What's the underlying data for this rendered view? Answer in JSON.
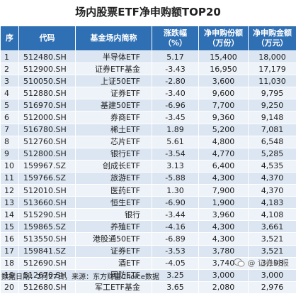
{
  "title": "场内股票ETF净申购额TOP20",
  "headers": {
    "no": "序",
    "code": "代码",
    "name": "基金场内简称",
    "chg_line1": "涨跌幅",
    "chg_line2": "（%）",
    "share_line1": "净申购份额",
    "share_line2": "（万份）",
    "amt_line1": "净申购金额",
    "amt_line2": "（万元）"
  },
  "rows": [
    {
      "no": "1",
      "code": "512480.SH",
      "name": "半导体ETF",
      "chg": "5.17",
      "share": "15,400",
      "amt": "18,000"
    },
    {
      "no": "2",
      "code": "512900.SH",
      "name": "证券ETF基金",
      "chg": "-3.43",
      "share": "16,950",
      "amt": "17,179"
    },
    {
      "no": "3",
      "code": "510050.SH",
      "name": "上证50ETF",
      "chg": "-2.80",
      "share": "3,600",
      "amt": "11,030"
    },
    {
      "no": "4",
      "code": "512880.SH",
      "name": "证券ETF",
      "chg": "-3.40",
      "share": "9,600",
      "amt": "9,795"
    },
    {
      "no": "5",
      "code": "516970.SH",
      "name": "基建50ETF",
      "chg": "-6.96",
      "share": "7,700",
      "amt": "9,250"
    },
    {
      "no": "6",
      "code": "512000.SH",
      "name": "券商ETF",
      "chg": "-3.45",
      "share": "9,360",
      "amt": "9,148"
    },
    {
      "no": "7",
      "code": "516780.SH",
      "name": "稀土ETF",
      "chg": "1.89",
      "share": "5,200",
      "amt": "7,081"
    },
    {
      "no": "8",
      "code": "512760.SH",
      "name": "芯片ETF",
      "chg": "5.61",
      "share": "4,800",
      "amt": "6,548"
    },
    {
      "no": "9",
      "code": "512800.SH",
      "name": "银行ETF",
      "chg": "-3.54",
      "share": "4,770",
      "amt": "5,285"
    },
    {
      "no": "10",
      "code": "159967.SZ",
      "name": "创成长ETF",
      "chg": "3.13",
      "share": "6,400",
      "amt": "4,535"
    },
    {
      "no": "11",
      "code": "159766.SZ",
      "name": "旅游ETF",
      "chg": "-5.88",
      "share": "4,300",
      "amt": "4,370"
    },
    {
      "no": "12",
      "code": "512010.SH",
      "name": "医药ETF",
      "chg": "1.30",
      "share": "7,900",
      "amt": "4,370"
    },
    {
      "no": "13",
      "code": "513660.SH",
      "name": "恒生ETF",
      "chg": "-6.90",
      "share": "1,900",
      "amt": "4,183"
    },
    {
      "no": "14",
      "code": "515290.SH",
      "name": "银行",
      "chg": "-3.44",
      "share": "3,960",
      "amt": "4,108"
    },
    {
      "no": "15",
      "code": "159865.SZ",
      "name": "养殖ETF",
      "chg": "-4.16",
      "share": "4,300",
      "amt": "3,661"
    },
    {
      "no": "16",
      "code": "513550.SH",
      "name": "港股通50ETF",
      "chg": "-6.89",
      "share": "4,300",
      "amt": "3,521"
    },
    {
      "no": "17",
      "code": "159841.SZ",
      "name": "证券ETF",
      "chg": "-3.53",
      "share": "3,780",
      "amt": "3,521"
    },
    {
      "no": "18",
      "code": "512690.SH",
      "name": "酒ETF",
      "chg": "-4.05",
      "share": "3,740",
      "amt": "3,198"
    },
    {
      "no": "19",
      "code": "512670.SH",
      "name": "国防ETF",
      "chg": "3.25",
      "share": "3,000",
      "amt": "3,000"
    },
    {
      "no": "20",
      "code": "512680.SH",
      "name": "军工ETF基金",
      "chg": "3.65",
      "share": "2,080",
      "amt": "2,976"
    }
  ],
  "footer": "数据日期：2月27日，来源：东方财富Choice数据",
  "watermark": "@ 证券时报",
  "colors": {
    "header_bg": "#2f6fb3",
    "row_odd": "#dce6f2",
    "row_even": "#eef3f9"
  }
}
